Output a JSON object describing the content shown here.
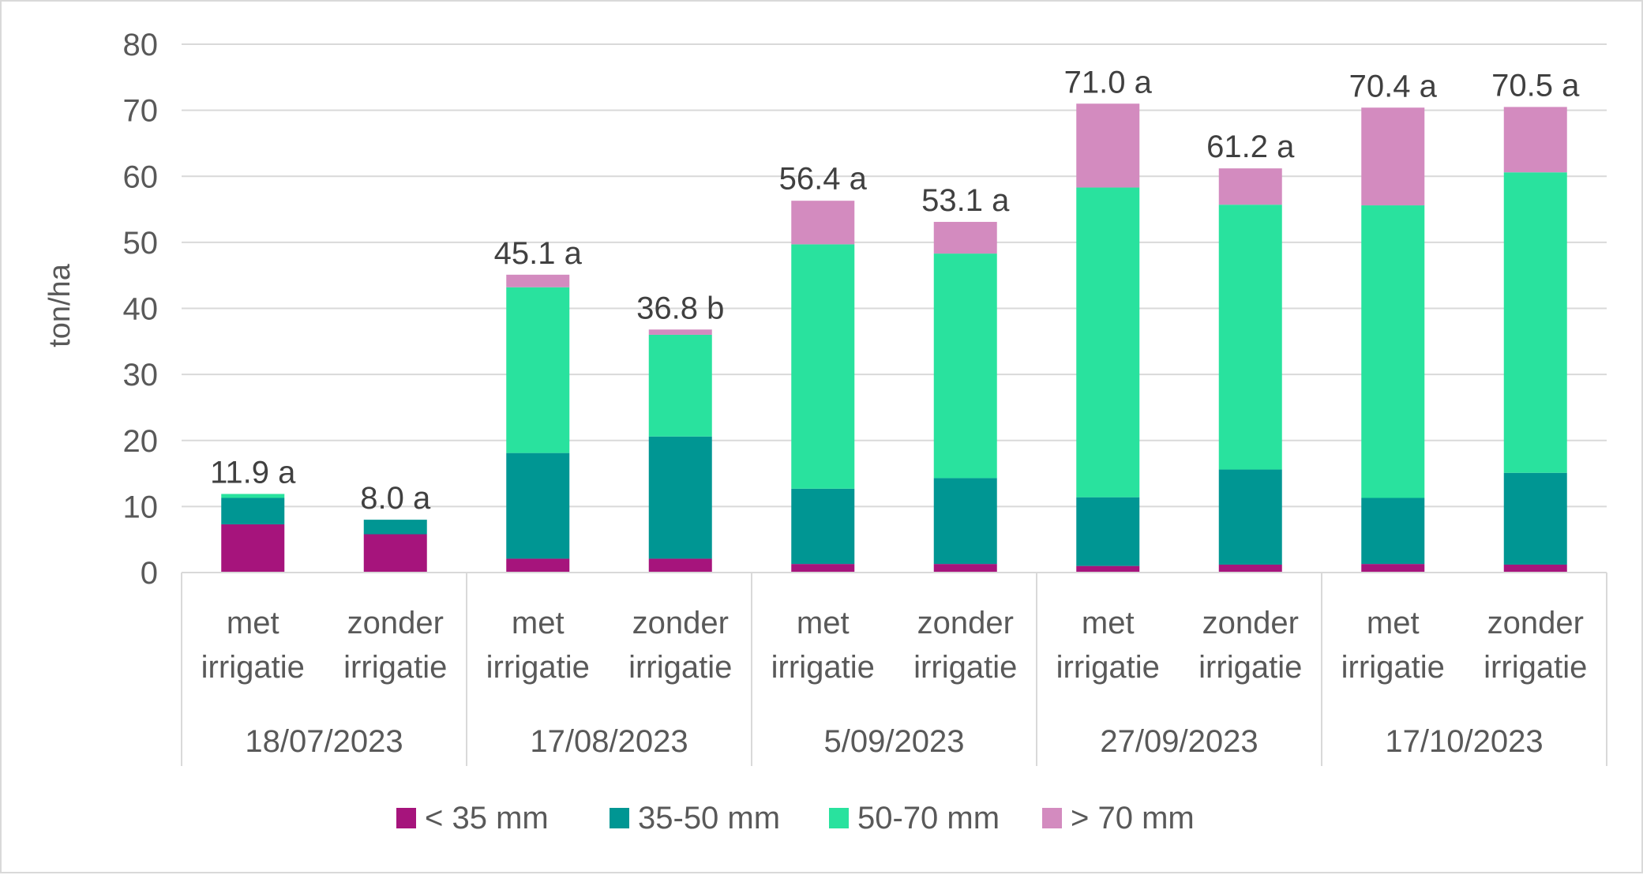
{
  "chart_data": {
    "type": "bar",
    "stacked": true,
    "title": "",
    "xlabel": "",
    "ylabel": "ton/ha",
    "ylim": [
      0,
      80
    ],
    "yticks": [
      0,
      10,
      20,
      30,
      40,
      50,
      60,
      70,
      80
    ],
    "grid": true,
    "legend_position": "bottom",
    "groups": [
      "18/07/2023",
      "17/08/2023",
      "5/09/2023",
      "27/09/2023",
      "17/10/2023"
    ],
    "subcategories": [
      [
        "met",
        "irrigatie"
      ],
      [
        "zonder",
        "irrigatie"
      ]
    ],
    "series": [
      {
        "name": "< 35 mm",
        "color": "#A6147C",
        "values": [
          7.3,
          5.8,
          2.1,
          2.1,
          1.3,
          1.3,
          1.0,
          1.2,
          1.3,
          1.2
        ]
      },
      {
        "name": "35-50 mm",
        "color": "#009693",
        "values": [
          4.0,
          2.2,
          16.0,
          18.5,
          11.4,
          13.0,
          10.4,
          14.4,
          10.0,
          13.9
        ]
      },
      {
        "name": "50-70 mm",
        "color": "#29E29E",
        "values": [
          0.6,
          0.0,
          25.1,
          15.4,
          37.0,
          34.0,
          46.9,
          40.1,
          44.3,
          45.5
        ]
      },
      {
        "name": "> 70 mm",
        "color": "#D38BBF",
        "values": [
          0.0,
          0.0,
          1.9,
          0.8,
          6.6,
          4.8,
          12.7,
          5.5,
          14.8,
          9.9
        ]
      }
    ],
    "totals": [
      11.9,
      8.0,
      45.1,
      36.8,
      56.4,
      53.1,
      71.0,
      61.2,
      70.4,
      70.5
    ],
    "data_labels": [
      "11.9 a",
      "8.0 a",
      "45.1 a",
      "36.8 b",
      "56.4 a",
      "53.1 a",
      "71.0 a",
      "61.2 a",
      "70.4 a",
      "70.5 a"
    ]
  }
}
